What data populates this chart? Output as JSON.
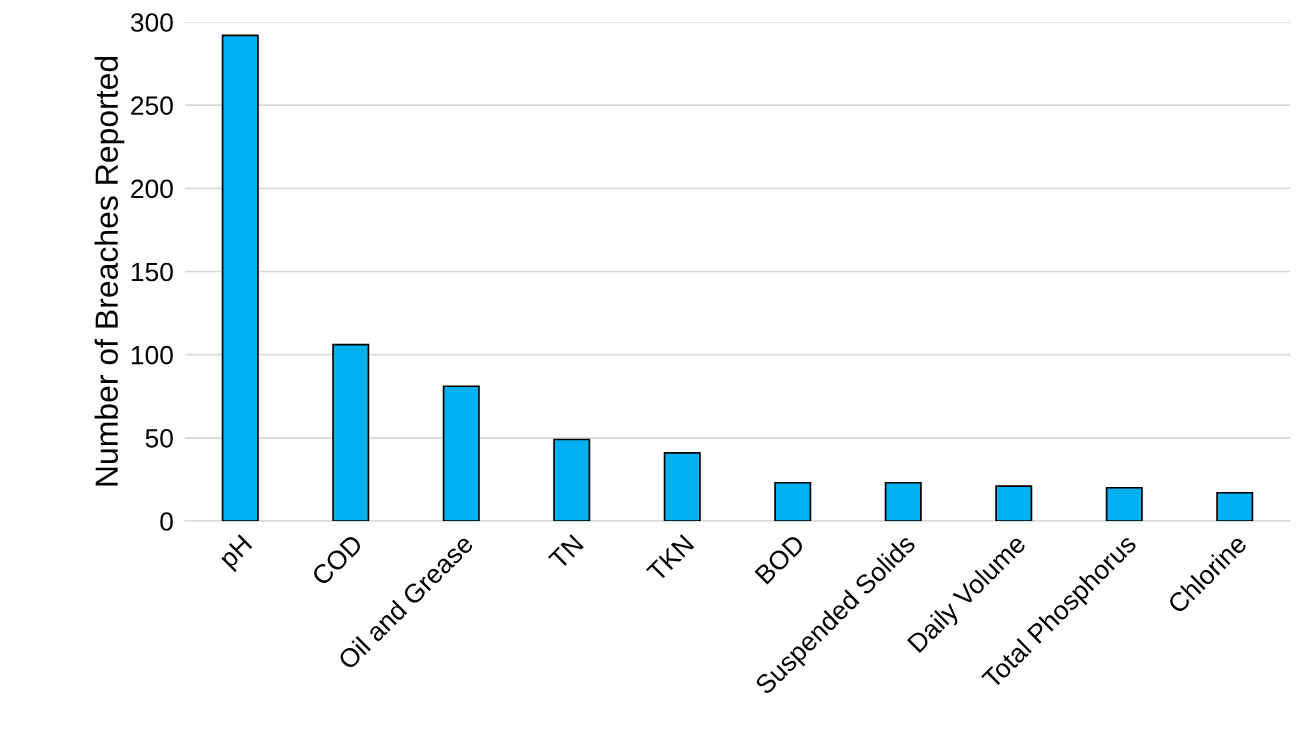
{
  "chart_data": {
    "type": "bar",
    "ylabel": "Number of Breaches Reported",
    "categories": [
      "pH",
      "COD",
      "Oil and Grease",
      "TN",
      "TKN",
      "BOD",
      "Suspended Solids",
      "Daily Volume",
      "Total Phosphorus",
      "Chlorine"
    ],
    "values": [
      292,
      106,
      81,
      49,
      41,
      23,
      23,
      21,
      20,
      17
    ],
    "color": "#00b0f0",
    "ylim": [
      0,
      300
    ],
    "yticks": [
      0,
      50,
      100,
      150,
      200,
      250,
      300
    ],
    "grid": "y"
  }
}
